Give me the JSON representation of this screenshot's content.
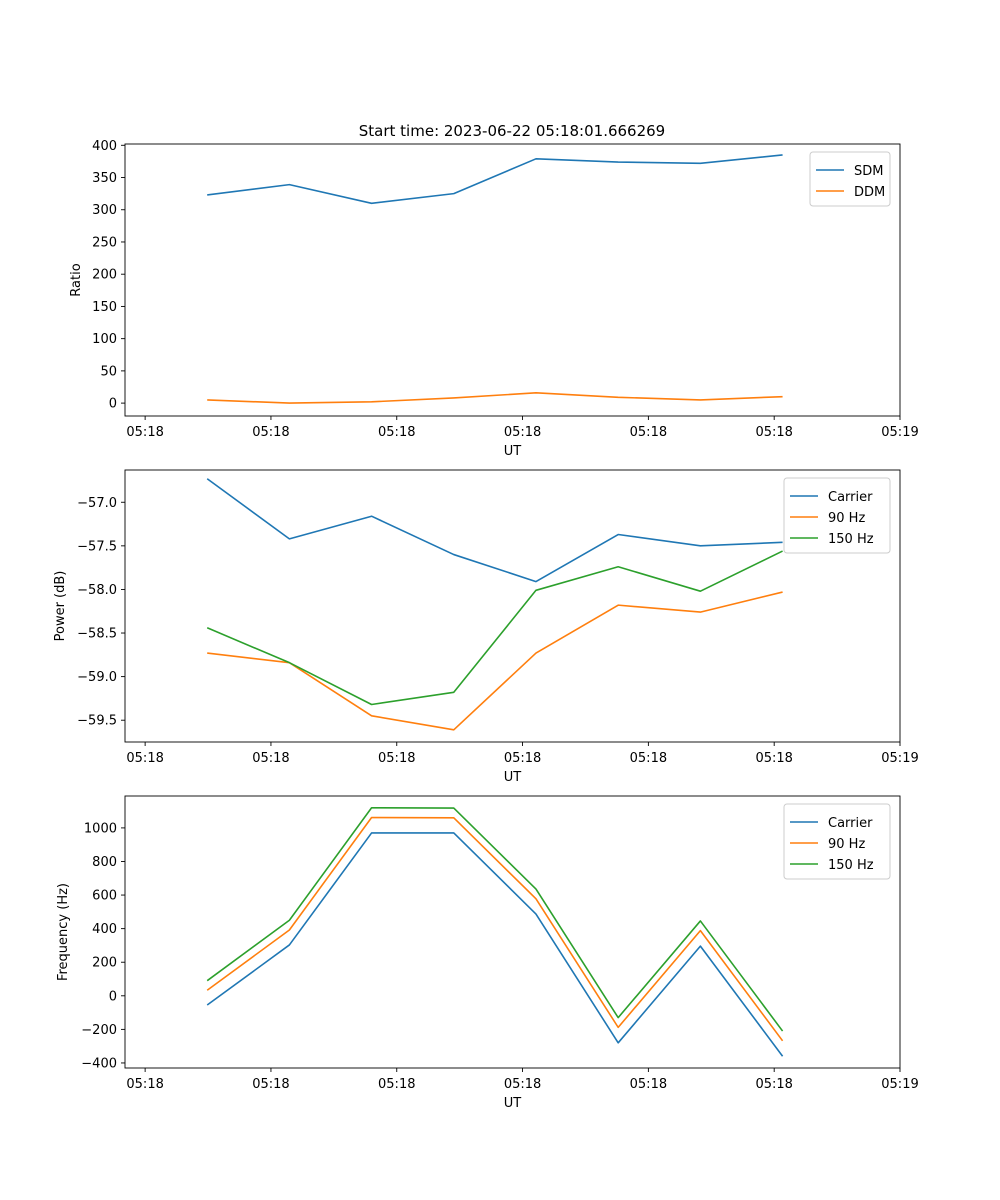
{
  "figure": {
    "title": "Start time: 2023-06-22 05:18:01.666269"
  },
  "chart_data": [
    {
      "type": "line",
      "title": "Start time: 2023-06-22 05:18:01.666269",
      "xlabel": "UT",
      "ylabel": "Ratio",
      "xlim": [
        -0.12,
        4.5
      ],
      "x_ticks": [
        0,
        0.75,
        1.5,
        2.25,
        3,
        3.75,
        4.5
      ],
      "x_tick_labels": [
        "05:18",
        "05:18",
        "05:18",
        "05:18",
        "05:18",
        "05:18",
        "05:19"
      ],
      "x": [
        0.37,
        0.86,
        1.35,
        1.84,
        2.33,
        2.82,
        3.31,
        3.8
      ],
      "ylim": [
        -20,
        402
      ],
      "y_ticks": [
        0,
        50,
        100,
        150,
        200,
        250,
        300,
        350,
        400
      ],
      "y_tick_labels": [
        "0",
        "50",
        "100",
        "150",
        "200",
        "250",
        "300",
        "350",
        "400"
      ],
      "grid": false,
      "legend": "upper-right",
      "series": [
        {
          "name": "SDM",
          "color": "#1f77b4",
          "values": [
            323,
            339,
            310,
            325,
            379,
            374,
            372,
            385
          ]
        },
        {
          "name": "DDM",
          "color": "#ff7f0e",
          "values": [
            5,
            0,
            2,
            8,
            16,
            9,
            5,
            10
          ]
        }
      ]
    },
    {
      "type": "line",
      "title": "",
      "xlabel": "UT",
      "ylabel": "Power (dB)",
      "xlim": [
        -0.12,
        4.5
      ],
      "x_ticks": [
        0,
        0.75,
        1.5,
        2.25,
        3,
        3.75,
        4.5
      ],
      "x_tick_labels": [
        "05:18",
        "05:18",
        "05:18",
        "05:18",
        "05:18",
        "05:18",
        "05:19"
      ],
      "x": [
        0.37,
        0.86,
        1.35,
        1.84,
        2.33,
        2.82,
        3.31,
        3.8
      ],
      "ylim": [
        -59.75,
        -56.63
      ],
      "y_ticks": [
        -59.5,
        -59.0,
        -58.5,
        -58.0,
        -57.5,
        -57.0
      ],
      "y_tick_labels": [
        "−59.5",
        "−59.0",
        "−58.5",
        "−58.0",
        "−57.5",
        "−57.0"
      ],
      "grid": false,
      "legend": "upper-right",
      "series": [
        {
          "name": "Carrier",
          "color": "#1f77b4",
          "values": [
            -56.73,
            -57.42,
            -57.16,
            -57.6,
            -57.91,
            -57.37,
            -57.5,
            -57.46
          ]
        },
        {
          "name": "90 Hz",
          "color": "#ff7f0e",
          "values": [
            -58.73,
            -58.84,
            -59.45,
            -59.61,
            -58.73,
            -58.18,
            -58.26,
            -58.03
          ]
        },
        {
          "name": "150 Hz",
          "color": "#2ca02c",
          "values": [
            -58.44,
            -58.84,
            -59.32,
            -59.18,
            -58.01,
            -57.74,
            -58.02,
            -57.56
          ]
        }
      ]
    },
    {
      "type": "line",
      "title": "",
      "xlabel": "UT",
      "ylabel": "Frequency (Hz)",
      "xlim": [
        -0.12,
        4.5
      ],
      "x_ticks": [
        0,
        0.75,
        1.5,
        2.25,
        3,
        3.75,
        4.5
      ],
      "x_tick_labels": [
        "05:18",
        "05:18",
        "05:18",
        "05:18",
        "05:18",
        "05:18",
        "05:19"
      ],
      "x": [
        0.37,
        0.86,
        1.35,
        1.84,
        2.33,
        2.82,
        3.31,
        3.8
      ],
      "ylim": [
        -430,
        1190
      ],
      "y_ticks": [
        -400,
        -200,
        0,
        200,
        400,
        600,
        800,
        1000
      ],
      "y_tick_labels": [
        "−400",
        "−200",
        "0",
        "200",
        "400",
        "600",
        "800",
        "1000"
      ],
      "grid": false,
      "legend": "upper-right",
      "series": [
        {
          "name": "Carrier",
          "color": "#1f77b4",
          "values": [
            -55,
            303,
            970,
            970,
            487,
            -280,
            296,
            -360
          ]
        },
        {
          "name": "90 Hz",
          "color": "#ff7f0e",
          "values": [
            33,
            392,
            1062,
            1060,
            578,
            -188,
            388,
            -268
          ]
        },
        {
          "name": "150 Hz",
          "color": "#2ca02c",
          "values": [
            90,
            450,
            1120,
            1118,
            636,
            -130,
            446,
            -210
          ]
        }
      ]
    }
  ]
}
